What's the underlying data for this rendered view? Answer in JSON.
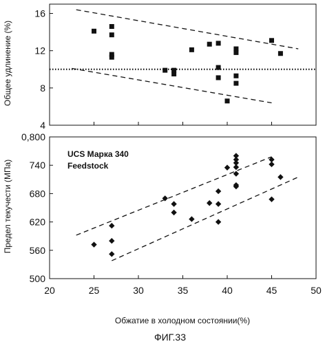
{
  "figure": {
    "caption": "ФИГ.33"
  },
  "chart_data": [
    {
      "type": "scatter",
      "ylabel": "Общее удлинение (%)",
      "xlim": [
        20,
        50
      ],
      "ylim": [
        4,
        17
      ],
      "yticks": [
        4,
        8,
        12,
        16
      ],
      "ytick_labels": [
        "4",
        "8",
        "12",
        "16"
      ],
      "grid": false,
      "marker": "square",
      "points": [
        [
          25,
          14.1
        ],
        [
          27,
          14.6
        ],
        [
          27,
          13.7
        ],
        [
          27,
          11.6
        ],
        [
          27,
          11.3
        ],
        [
          33,
          9.9
        ],
        [
          34,
          9.9
        ],
        [
          34,
          9.5
        ],
        [
          36,
          12.1
        ],
        [
          38,
          12.7
        ],
        [
          39,
          12.8
        ],
        [
          39,
          10.2
        ],
        [
          39,
          9.1
        ],
        [
          40,
          6.6
        ],
        [
          41,
          12.2
        ],
        [
          41,
          11.8
        ],
        [
          41,
          9.3
        ],
        [
          41,
          8.5
        ],
        [
          45,
          13.1
        ],
        [
          46,
          11.7
        ]
      ],
      "lines": [
        {
          "style": "dashed",
          "from": [
            23,
            16.4
          ],
          "to": [
            48,
            12.2
          ]
        },
        {
          "style": "dashed",
          "from": [
            22.5,
            10.1
          ],
          "to": [
            45,
            6.4
          ]
        },
        {
          "style": "dotted",
          "from": [
            20,
            10.0
          ],
          "to": [
            50,
            10.0
          ]
        }
      ]
    },
    {
      "type": "scatter",
      "ylabel": "Предел текучести (МПа)",
      "xlabel": "Обжатие в холодном состоянии(%)",
      "annotations": [
        "UCS Марка 340",
        "Feedstock"
      ],
      "xlim": [
        20,
        50
      ],
      "ylim": [
        500,
        800
      ],
      "xticks": [
        20,
        25,
        30,
        35,
        40,
        45,
        50
      ],
      "xtick_labels": [
        "20",
        "25",
        "30",
        "35",
        "40",
        "45",
        "50"
      ],
      "yticks": [
        500,
        560,
        620,
        680,
        740,
        800
      ],
      "ytick_labels": [
        "500",
        "560",
        "620",
        "680",
        "740",
        "0,800"
      ],
      "grid": false,
      "marker": "diamond",
      "points": [
        [
          25,
          572
        ],
        [
          27,
          612
        ],
        [
          27,
          580
        ],
        [
          27,
          552
        ],
        [
          33,
          670
        ],
        [
          34,
          658
        ],
        [
          34,
          640
        ],
        [
          36,
          626
        ],
        [
          38,
          660
        ],
        [
          39,
          685
        ],
        [
          39,
          658
        ],
        [
          39,
          620
        ],
        [
          40,
          735
        ],
        [
          41,
          760
        ],
        [
          41,
          752
        ],
        [
          41,
          745
        ],
        [
          41,
          736
        ],
        [
          41,
          722
        ],
        [
          41,
          698
        ],
        [
          41,
          695
        ],
        [
          45,
          752
        ],
        [
          45,
          742
        ],
        [
          45,
          668
        ],
        [
          46,
          715
        ]
      ],
      "lines": [
        {
          "style": "dashed",
          "from": [
            23,
            592
          ],
          "to": [
            45,
            758
          ]
        },
        {
          "style": "dashed",
          "from": [
            27,
            538
          ],
          "to": [
            48,
            715
          ]
        }
      ]
    }
  ]
}
